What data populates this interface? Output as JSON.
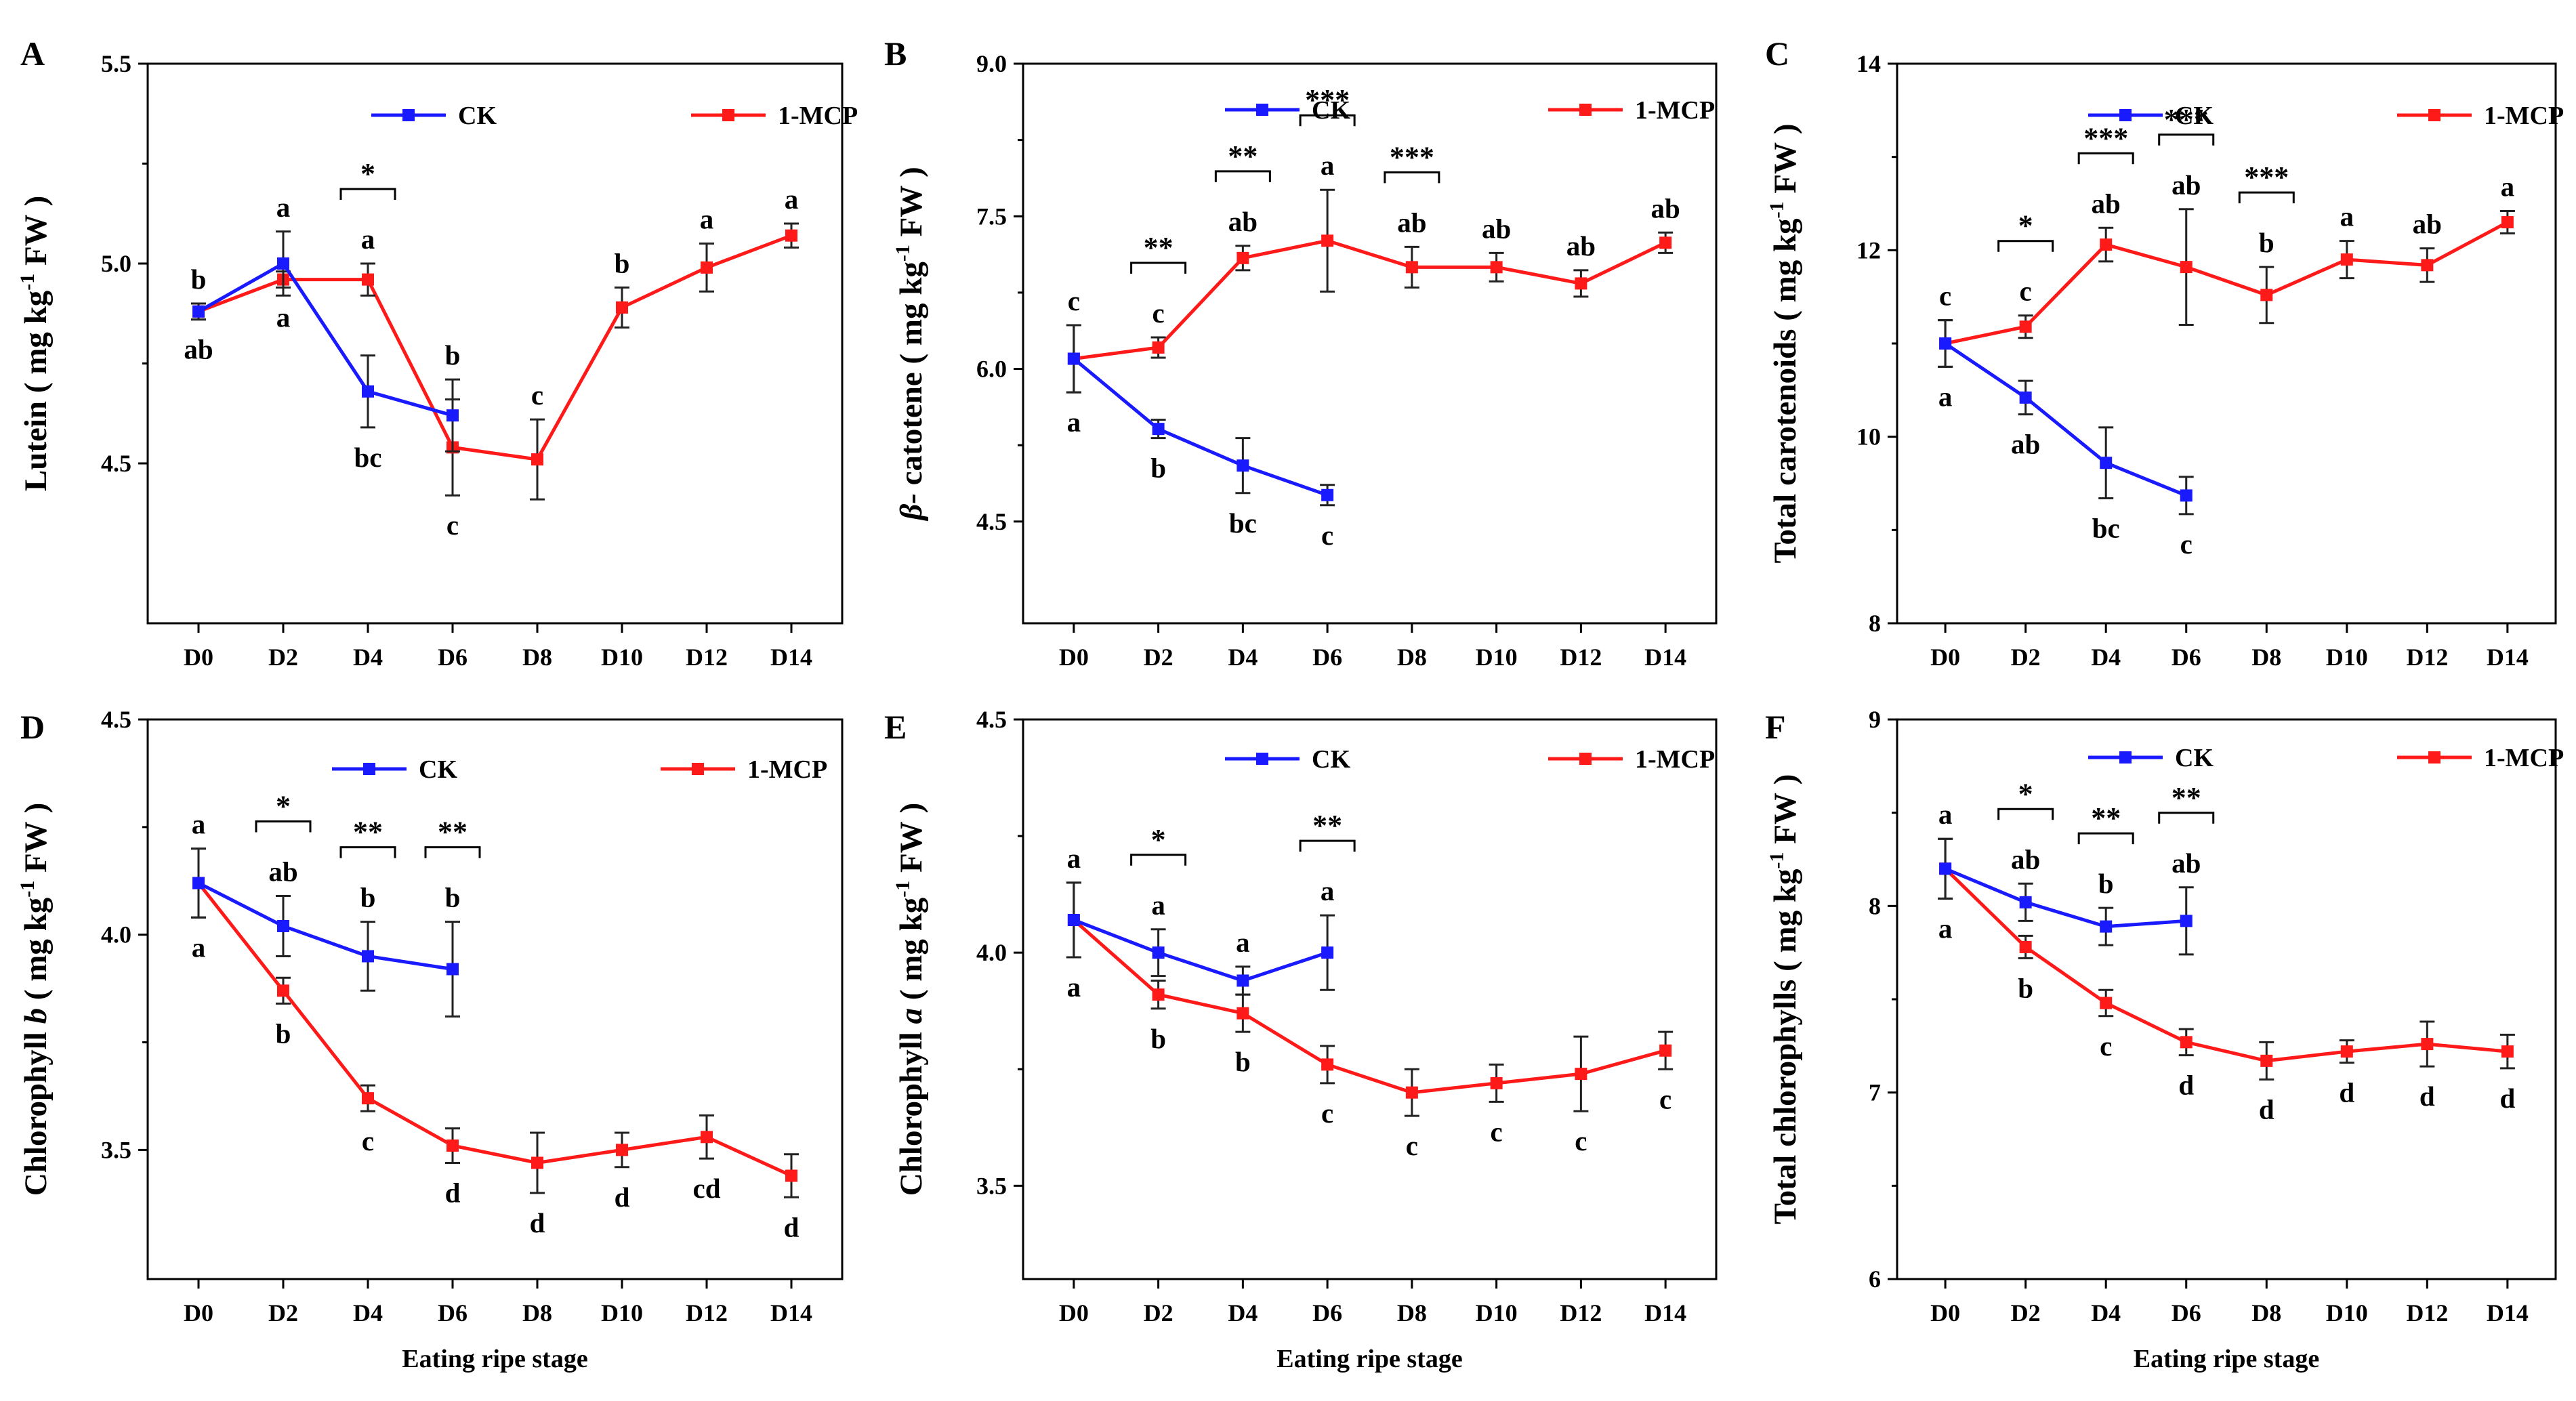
{
  "figure": {
    "x_axis_label": "Eating ripe stage"
  },
  "chart_data": [
    {
      "panel": "A",
      "type": "line",
      "ylabel": "Lutein ( mg kg",
      "ylabel_sup": "-1",
      "ylabel_tail": " FW )",
      "ylabel_italic": "",
      "ylim": [
        4.1,
        5.5
      ],
      "yticks": [
        4.5,
        5.0,
        5.5
      ],
      "ytick_labels": [
        "4.5",
        "5.0",
        "5.5"
      ],
      "categories": [
        "D0",
        "D2",
        "D4",
        "D6",
        "D8",
        "D10",
        "D12",
        "D14"
      ],
      "show_xlabel": false,
      "series": [
        {
          "name": "CK",
          "color": "#1a1aff",
          "values": [
            4.88,
            5.0,
            4.68,
            4.62,
            null,
            null,
            null,
            null
          ],
          "errors": [
            0.02,
            0.08,
            0.09,
            0.09,
            null,
            null,
            null,
            null
          ],
          "labels": [
            "ab",
            "a",
            "bc",
            "b",
            "",
            "",
            "",
            ""
          ],
          "label_pos": [
            "below",
            "above",
            "below",
            "above",
            "",
            "",
            "",
            ""
          ]
        },
        {
          "name": "1-MCP",
          "color": "#ff1a1a",
          "values": [
            4.88,
            4.96,
            4.96,
            4.54,
            4.51,
            4.89,
            4.99,
            5.07
          ],
          "errors": [
            0.02,
            0.02,
            0.04,
            0.12,
            0.1,
            0.05,
            0.06,
            0.03
          ],
          "labels": [
            "b",
            "a",
            "a",
            "c",
            "c",
            "b",
            "a",
            "a"
          ],
          "label_pos": [
            "above",
            "below",
            "above",
            "below",
            "above",
            "above",
            "above",
            "above"
          ]
        }
      ],
      "significance": [
        {
          "at": "D4",
          "stars": "*"
        }
      ]
    },
    {
      "panel": "B",
      "type": "line",
      "ylabel": " catotene ( mg kg",
      "ylabel_sup": "-1",
      "ylabel_tail": " FW )",
      "ylabel_italic": "β-",
      "ylim": [
        3.5,
        9.0
      ],
      "yticks": [
        4.5,
        6.0,
        7.5,
        9.0
      ],
      "ytick_labels": [
        "4.5",
        "6.0",
        "7.5",
        "9.0"
      ],
      "categories": [
        "D0",
        "D2",
        "D4",
        "D6",
        "D8",
        "D10",
        "D12",
        "D14"
      ],
      "show_xlabel": false,
      "series": [
        {
          "name": "CK",
          "color": "#1a1aff",
          "values": [
            6.1,
            5.41,
            5.05,
            4.76,
            null,
            null,
            null,
            null
          ],
          "errors": [
            0.33,
            0.09,
            0.27,
            0.1,
            null,
            null,
            null,
            null
          ],
          "labels": [
            "a",
            "b",
            "bc",
            "c",
            "",
            "",
            "",
            ""
          ],
          "label_pos": [
            "below",
            "below",
            "below",
            "below",
            "",
            "",
            "",
            ""
          ]
        },
        {
          "name": "1-MCP",
          "color": "#ff1a1a",
          "values": [
            6.1,
            6.21,
            7.09,
            7.26,
            7.0,
            7.0,
            6.84,
            7.24
          ],
          "errors": [
            0.33,
            0.1,
            0.12,
            0.5,
            0.2,
            0.14,
            0.13,
            0.1
          ],
          "labels": [
            "c",
            "c",
            "ab",
            "a",
            "ab",
            "ab",
            "ab",
            "ab"
          ],
          "label_pos": [
            "above",
            "above",
            "above",
            "above",
            "above",
            "above",
            "above",
            "above"
          ]
        }
      ],
      "significance": [
        {
          "at": "D2",
          "stars": "**"
        },
        {
          "at": "D4",
          "stars": "**"
        },
        {
          "at": "D6",
          "stars": "***"
        },
        {
          "at": "D8",
          "stars": "***"
        }
      ]
    },
    {
      "panel": "C",
      "type": "line",
      "ylabel": "Total carotenoids ( mg kg",
      "ylabel_sup": "-1",
      "ylabel_tail": " FW )",
      "ylabel_italic": "",
      "ylim": [
        8,
        14
      ],
      "yticks": [
        8,
        10,
        12,
        14
      ],
      "ytick_labels": [
        "8",
        "10",
        "12",
        "14"
      ],
      "categories": [
        "D0",
        "D2",
        "D4",
        "D6",
        "D8",
        "D10",
        "D12",
        "D14"
      ],
      "show_xlabel": false,
      "series": [
        {
          "name": "CK",
          "color": "#1a1aff",
          "values": [
            11.0,
            10.42,
            9.72,
            9.37,
            null,
            null,
            null,
            null
          ],
          "errors": [
            0.25,
            0.18,
            0.38,
            0.2,
            null,
            null,
            null,
            null
          ],
          "labels": [
            "a",
            "ab",
            "bc",
            "c",
            "",
            "",
            "",
            ""
          ],
          "label_pos": [
            "below",
            "below",
            "below",
            "below",
            "",
            "",
            "",
            ""
          ]
        },
        {
          "name": "1-MCP",
          "color": "#ff1a1a",
          "values": [
            11.0,
            11.18,
            12.06,
            11.82,
            11.52,
            11.9,
            11.84,
            12.3
          ],
          "errors": [
            0.25,
            0.12,
            0.18,
            0.62,
            0.3,
            0.2,
            0.18,
            0.12
          ],
          "labels": [
            "c",
            "c",
            "ab",
            "ab",
            "b",
            "a",
            "ab",
            "a"
          ],
          "label_pos": [
            "above",
            "above",
            "above",
            "above",
            "above",
            "above",
            "above",
            "above"
          ]
        }
      ],
      "significance": [
        {
          "at": "D2",
          "stars": "*"
        },
        {
          "at": "D4",
          "stars": "***"
        },
        {
          "at": "D6",
          "stars": "***"
        },
        {
          "at": "D8",
          "stars": "***"
        }
      ]
    },
    {
      "panel": "D",
      "type": "line",
      "ylabel": "Chlorophyll ",
      "ylabel_sup": "-1",
      "ylabel_tail": " FW )",
      "ylabel_italic": "b",
      "ylabel_mid": " ( mg kg",
      "ylim": [
        3.2,
        4.5
      ],
      "yticks": [
        3.5,
        4.0,
        4.5
      ],
      "ytick_labels": [
        "3.5",
        "4.0",
        "4.5"
      ],
      "categories": [
        "D0",
        "D2",
        "D4",
        "D6",
        "D8",
        "D10",
        "D12",
        "D14"
      ],
      "show_xlabel": true,
      "series": [
        {
          "name": "CK",
          "color": "#1a1aff",
          "values": [
            4.12,
            4.02,
            3.95,
            3.92,
            null,
            null,
            null,
            null
          ],
          "errors": [
            0.08,
            0.07,
            0.08,
            0.11,
            null,
            null,
            null,
            null
          ],
          "labels": [
            "a",
            "ab",
            "b",
            "b",
            "",
            "",
            "",
            ""
          ],
          "label_pos": [
            "above",
            "above",
            "above",
            "above",
            "",
            "",
            "",
            ""
          ]
        },
        {
          "name": "1-MCP",
          "color": "#ff1a1a",
          "values": [
            4.12,
            3.87,
            3.62,
            3.51,
            3.47,
            3.5,
            3.53,
            3.44
          ],
          "errors": [
            0.08,
            0.03,
            0.03,
            0.04,
            0.07,
            0.04,
            0.05,
            0.05
          ],
          "labels": [
            "a",
            "b",
            "c",
            "d",
            "d",
            "d",
            "cd",
            "d"
          ],
          "label_pos": [
            "below",
            "below",
            "below",
            "below",
            "below",
            "below",
            "below",
            "below"
          ]
        }
      ],
      "significance": [
        {
          "at": "D2",
          "stars": "*"
        },
        {
          "at": "D4",
          "stars": "**"
        },
        {
          "at": "D6",
          "stars": "**"
        }
      ]
    },
    {
      "panel": "E",
      "type": "line",
      "ylabel": "Chlorophyll ",
      "ylabel_sup": "-1",
      "ylabel_tail": " FW )",
      "ylabel_italic": "a",
      "ylabel_mid": " ( mg kg",
      "ylim": [
        3.3,
        4.5
      ],
      "yticks": [
        3.5,
        4.0,
        4.5
      ],
      "ytick_labels": [
        "3.5",
        "4.0",
        "4.5"
      ],
      "categories": [
        "D0",
        "D2",
        "D4",
        "D6",
        "D8",
        "D10",
        "D12",
        "D14"
      ],
      "show_xlabel": true,
      "series": [
        {
          "name": "CK",
          "color": "#1a1aff",
          "values": [
            4.07,
            4.0,
            3.94,
            4.0,
            null,
            null,
            null,
            null
          ],
          "errors": [
            0.08,
            0.05,
            0.03,
            0.08,
            null,
            null,
            null,
            null
          ],
          "labels": [
            "a",
            "a",
            "a",
            "a",
            "",
            "",
            "",
            ""
          ],
          "label_pos": [
            "above",
            "above",
            "above",
            "above",
            "",
            "",
            "",
            ""
          ]
        },
        {
          "name": "1-MCP",
          "color": "#ff1a1a",
          "values": [
            4.07,
            3.91,
            3.87,
            3.76,
            3.7,
            3.72,
            3.74,
            3.79
          ],
          "errors": [
            0.08,
            0.03,
            0.04,
            0.04,
            0.05,
            0.04,
            0.08,
            0.04
          ],
          "labels": [
            "a",
            "b",
            "b",
            "c",
            "c",
            "c",
            "c",
            "c"
          ],
          "label_pos": [
            "below",
            "below",
            "below",
            "below",
            "below",
            "below",
            "below",
            "below"
          ]
        }
      ],
      "significance": [
        {
          "at": "D2",
          "stars": "*"
        },
        {
          "at": "D6",
          "stars": "**"
        }
      ]
    },
    {
      "panel": "F",
      "type": "line",
      "ylabel": "Total chlorophylls ( mg kg",
      "ylabel_sup": "-1",
      "ylabel_tail": " FW )",
      "ylabel_italic": "",
      "ylim": [
        6,
        9
      ],
      "yticks": [
        6,
        7,
        8,
        9
      ],
      "ytick_labels": [
        "6",
        "7",
        "8",
        "9"
      ],
      "categories": [
        "D0",
        "D2",
        "D4",
        "D6",
        "D8",
        "D10",
        "D12",
        "D14"
      ],
      "show_xlabel": true,
      "series": [
        {
          "name": "CK",
          "color": "#1a1aff",
          "values": [
            8.2,
            8.02,
            7.89,
            7.92,
            null,
            null,
            null,
            null
          ],
          "errors": [
            0.16,
            0.1,
            0.1,
            0.18,
            null,
            null,
            null,
            null
          ],
          "labels": [
            "a",
            "ab",
            "b",
            "ab",
            "",
            "",
            "",
            ""
          ],
          "label_pos": [
            "above",
            "above",
            "above",
            "above",
            "",
            "",
            "",
            ""
          ]
        },
        {
          "name": "1-MCP",
          "color": "#ff1a1a",
          "values": [
            8.2,
            7.78,
            7.48,
            7.27,
            7.17,
            7.22,
            7.26,
            7.22
          ],
          "errors": [
            0.16,
            0.06,
            0.07,
            0.07,
            0.1,
            0.06,
            0.12,
            0.09
          ],
          "labels": [
            "a",
            "b",
            "c",
            "d",
            "d",
            "d",
            "d",
            "d"
          ],
          "label_pos": [
            "below",
            "below",
            "below",
            "below",
            "below",
            "below",
            "below",
            "below"
          ]
        }
      ],
      "significance": [
        {
          "at": "D2",
          "stars": "*"
        },
        {
          "at": "D4",
          "stars": "**"
        },
        {
          "at": "D6",
          "stars": "**"
        }
      ]
    }
  ]
}
